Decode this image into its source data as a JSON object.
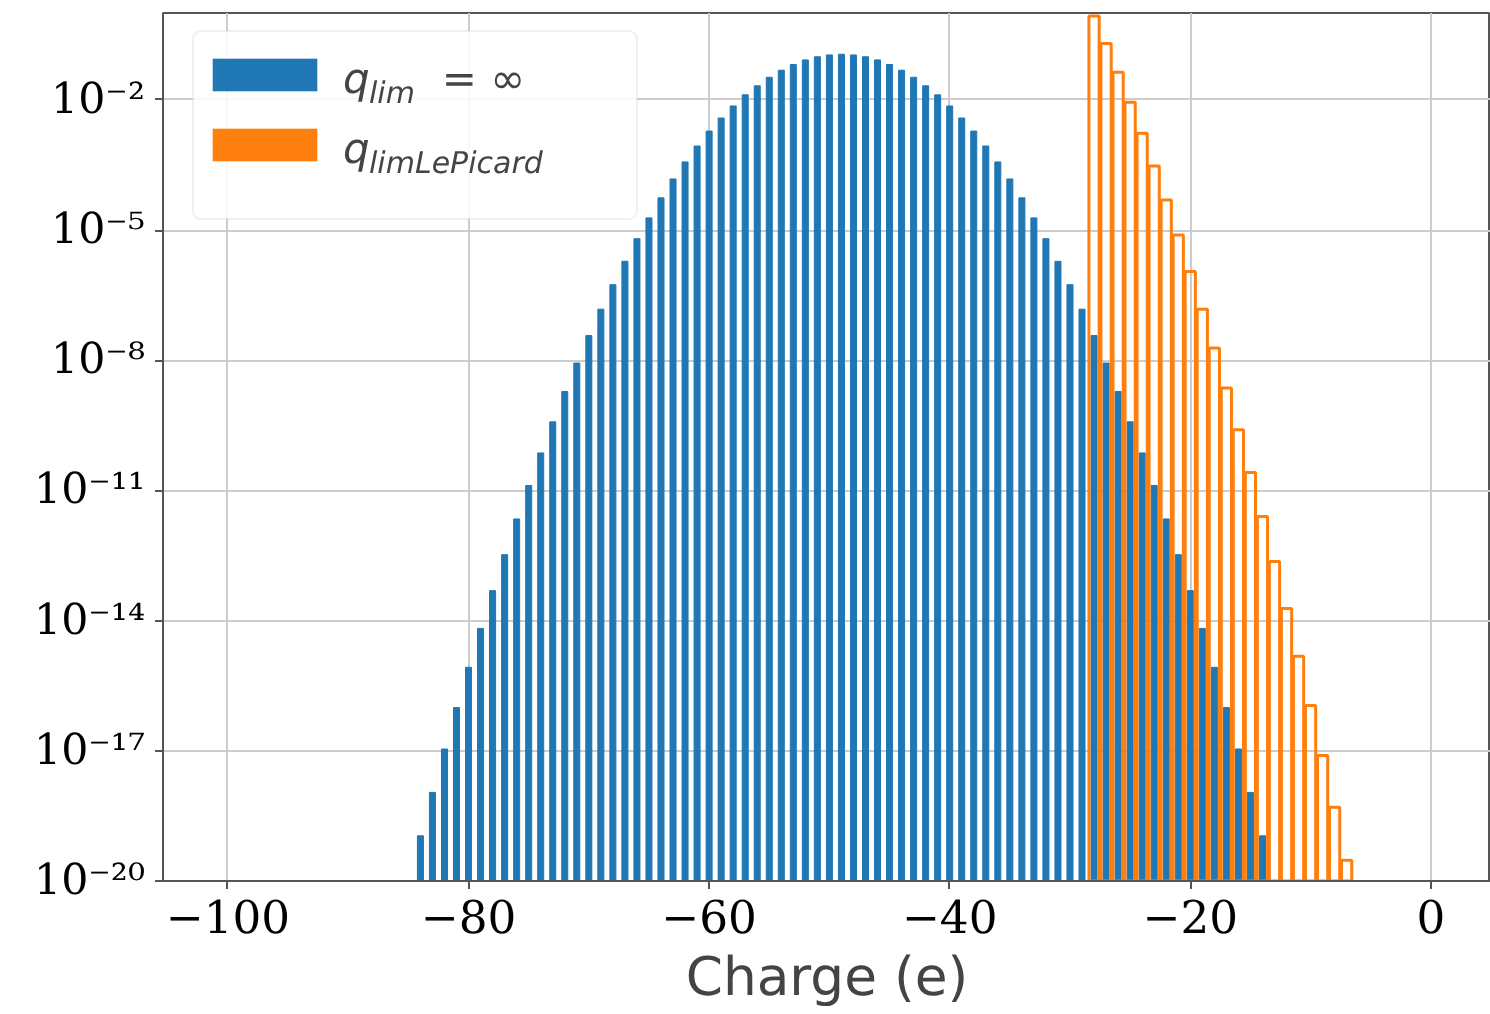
{
  "chart_data": {
    "type": "bar",
    "xlabel": "Charge (e)",
    "log": "y",
    "xlim": [
      -105.4,
      5
    ],
    "ylim": [
      1e-20,
      1
    ],
    "xticks": [
      -100,
      -80,
      -60,
      -40,
      -20,
      0
    ],
    "yticks": [
      {
        "value": 1e-20,
        "label": "10⁻²⁰"
      },
      {
        "value": 1e-17,
        "label": "10⁻¹⁷"
      },
      {
        "value": 1e-14,
        "label": "10⁻¹⁴"
      },
      {
        "value": 1e-11,
        "label": "10⁻¹¹"
      },
      {
        "value": 1e-08,
        "label": "10⁻⁸"
      },
      {
        "value": 1e-05,
        "label": "10⁻⁵"
      },
      {
        "value": 0.01,
        "label": "10⁻²"
      }
    ],
    "grid": true,
    "legend": "top left",
    "series": [
      {
        "name": "q$_{lim}$ = ∞",
        "color": "#1f77b4",
        "x": [
          -85,
          -84,
          -83,
          -82,
          -81,
          -80,
          -79,
          -78,
          -77,
          -76,
          -75,
          -74,
          -73,
          -72,
          -71,
          -70,
          -69,
          -68,
          -67,
          -66,
          -65,
          -64,
          -63,
          -62,
          -61,
          -60,
          -59,
          -58,
          -57,
          -56,
          -55,
          -54,
          -53,
          -52,
          -51,
          -50,
          -49,
          -48,
          -47,
          -46,
          -45,
          -44,
          -43,
          -42,
          -41,
          -40,
          -39,
          -38,
          -37,
          -36,
          -35,
          -34,
          -33,
          -32,
          -31,
          -30,
          -29,
          -28,
          -27,
          -26,
          -25,
          -24,
          -23,
          -22,
          -21,
          -20,
          -19,
          -18,
          -17,
          -16,
          -15,
          -14,
          -13
        ],
        "values": [
          1e-20,
          1.1e-19,
          1.1e-18,
          1.1e-17,
          9.9e-17,
          8.4e-16,
          6.6e-15,
          4.9e-14,
          3.3e-13,
          2.2e-12,
          1.3e-11,
          7.3e-11,
          3.8e-10,
          1.9e-09,
          8.6e-09,
          3.7e-08,
          1.5e-07,
          5.5e-07,
          1.9e-06,
          6.3e-06,
          1.9e-05,
          5.5e-05,
          0.00015,
          0.00037,
          0.00086,
          0.0019,
          0.0038,
          0.0072,
          0.013,
          0.021,
          0.033,
          0.048,
          0.065,
          0.083,
          0.098,
          0.108,
          0.112,
          0.108,
          0.098,
          0.083,
          0.065,
          0.048,
          0.033,
          0.021,
          0.013,
          0.0072,
          0.0038,
          0.0019,
          0.00086,
          0.00037,
          0.00015,
          5.5e-05,
          1.9e-05,
          6.3e-06,
          1.9e-06,
          5.5e-07,
          1.5e-07,
          3.7e-08,
          8.6e-09,
          1.9e-09,
          3.8e-10,
          7.3e-11,
          1.3e-11,
          2.2e-12,
          3.3e-13,
          4.9e-14,
          6.6e-15,
          8.4e-16,
          9.9e-17,
          1.1e-17,
          1.1e-18,
          1.1e-19,
          1e-20
        ]
      },
      {
        "name": "q$_{limLePicard}$",
        "color": "#ff7f0e",
        "x": [
          -28,
          -27,
          -26,
          -25,
          -24,
          -23,
          -22,
          -21,
          -20,
          -19,
          -18,
          -17,
          -16,
          -15,
          -14,
          -13,
          -12,
          -11,
          -10,
          -9,
          -8,
          -7
        ],
        "values": [
          0.85,
          0.197,
          0.043,
          0.0088,
          0.0017,
          0.0003,
          4.9e-05,
          7.7e-06,
          1.1e-06,
          1.5e-07,
          1.9e-08,
          2.3e-09,
          2.5e-10,
          2.6e-11,
          2.5e-12,
          2.3e-13,
          1.9e-14,
          1.5e-15,
          1.1e-16,
          7.8e-18,
          5e-19,
          3e-20
        ]
      }
    ]
  }
}
